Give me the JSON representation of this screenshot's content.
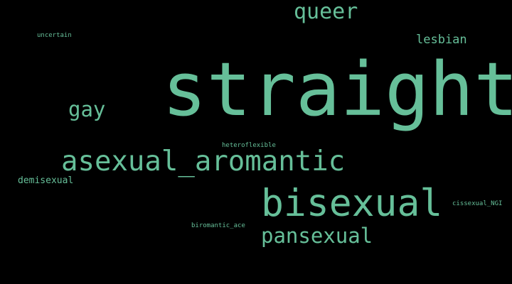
{
  "colors": {
    "background": "#000000",
    "word": "#66bf99"
  },
  "words": [
    {
      "text": "straight"
    },
    {
      "text": "queer"
    },
    {
      "text": "lesbian"
    },
    {
      "text": "uncertain"
    },
    {
      "text": "gay"
    },
    {
      "text": "heteroflexible"
    },
    {
      "text": "asexual_aromantic"
    },
    {
      "text": "demisexual"
    },
    {
      "text": "bisexual"
    },
    {
      "text": "cissexual_NGI"
    },
    {
      "text": "biromantic_ace"
    },
    {
      "text": "pansexual"
    }
  ]
}
